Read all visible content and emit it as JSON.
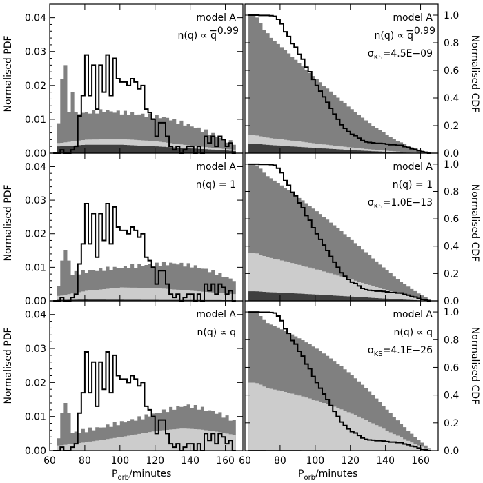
{
  "colors": {
    "dark": "#3f3f3f",
    "mid": "#808080",
    "light": "#cccccc",
    "obs_line": "#000000",
    "background": "#ffffff"
  },
  "chart_data": {
    "type": "area",
    "description_axes": {
      "x_label_main": "P",
      "x_label_sub": "orb",
      "x_label_rest": "/minutes",
      "left_ylabel": "Normalised PDF",
      "right_ylabel": "Normalised CDF",
      "xlim": [
        60,
        170
      ],
      "pdf_ylim": [
        0,
        0.044
      ],
      "cdf_ylim": [
        0,
        1.08
      ],
      "left_xticks": [
        "60",
        "80",
        "100",
        "120",
        "140",
        "160"
      ],
      "right_xticks": [
        "60",
        "80",
        "100",
        "120",
        "140",
        "160"
      ],
      "pdf_yticks": [
        "0.00",
        "0.01",
        "0.02",
        "0.03",
        "0.04"
      ],
      "cdf_yticks": [
        "0.0",
        "0.2",
        "0.4",
        "0.6",
        "0.8",
        "1.0"
      ]
    },
    "rows": [
      {
        "model": "model A",
        "nq_label": "n(q) ∝ q",
        "nq_exponent": "−0.99",
        "sigma_label": "σ",
        "sigma_sub": "KS",
        "sigma_value": "=4.5E−09",
        "pdf_total_shape": [
          [
            65,
            0.009
          ],
          [
            70,
            0.0115
          ],
          [
            90,
            0.0125
          ],
          [
            110,
            0.0115
          ],
          [
            125,
            0.0105
          ],
          [
            140,
            0.008
          ],
          [
            150,
            0.006
          ],
          [
            160,
            0.0035
          ],
          [
            165,
            0.003
          ]
        ],
        "pdf_light_shape": [
          [
            65,
            0.003
          ],
          [
            80,
            0.004
          ],
          [
            100,
            0.0042
          ],
          [
            120,
            0.0035
          ],
          [
            140,
            0.0022
          ],
          [
            160,
            0.0012
          ],
          [
            165,
            0.001
          ]
        ],
        "pdf_dark_shape": [
          [
            65,
            0.002
          ],
          [
            80,
            0.0025
          ],
          [
            100,
            0.0025
          ],
          [
            120,
            0.002
          ],
          [
            140,
            0.0014
          ],
          [
            160,
            0.0008
          ],
          [
            165,
            0.0006
          ]
        ],
        "cdf_dark_start": 0.07,
        "cdf_light_start": 0.13
      },
      {
        "model": "model A",
        "nq_label": "n(q) = 1",
        "nq_exponent": "",
        "sigma_label": "σ",
        "sigma_sub": "KS",
        "sigma_value": "=1.0E−13",
        "pdf_total_shape": [
          [
            65,
            0.004
          ],
          [
            70,
            0.008
          ],
          [
            90,
            0.0095
          ],
          [
            110,
            0.0105
          ],
          [
            130,
            0.0112
          ],
          [
            140,
            0.0105
          ],
          [
            150,
            0.009
          ],
          [
            160,
            0.007
          ],
          [
            165,
            0.006
          ]
        ],
        "pdf_light_shape": [
          [
            65,
            0.0015
          ],
          [
            80,
            0.003
          ],
          [
            100,
            0.004
          ],
          [
            120,
            0.0038
          ],
          [
            140,
            0.003
          ],
          [
            160,
            0.0022
          ],
          [
            165,
            0.002
          ]
        ],
        "pdf_dark_shape": [
          [
            65,
            0.0003
          ],
          [
            80,
            0.0004
          ],
          [
            120,
            0.0003
          ],
          [
            165,
            0.0002
          ]
        ],
        "cdf_dark_start": 0.07,
        "cdf_light_start": 0.35
      },
      {
        "model": "model A",
        "nq_label": "n(q) ∝ q",
        "nq_exponent": "",
        "sigma_label": "σ",
        "sigma_sub": "KS",
        "sigma_value": "=4.1E−26",
        "pdf_total_shape": [
          [
            65,
            0.003
          ],
          [
            70,
            0.005
          ],
          [
            90,
            0.007
          ],
          [
            110,
            0.0095
          ],
          [
            130,
            0.0125
          ],
          [
            137,
            0.0133
          ],
          [
            145,
            0.0125
          ],
          [
            155,
            0.011
          ],
          [
            165,
            0.0085
          ]
        ],
        "pdf_light_shape": [
          [
            65,
            0.0015
          ],
          [
            80,
            0.0025
          ],
          [
            100,
            0.004
          ],
          [
            120,
            0.0058
          ],
          [
            135,
            0.0065
          ],
          [
            145,
            0.0062
          ],
          [
            155,
            0.0055
          ],
          [
            165,
            0.0045
          ]
        ],
        "pdf_dark_shape": [
          [
            65,
            0.0001
          ],
          [
            165,
            0.0001
          ]
        ],
        "cdf_dark_start": 0.005,
        "cdf_light_start": 0.49
      }
    ],
    "observed_pdf_bins": [
      [
        62,
        0.0
      ],
      [
        64,
        0.0
      ],
      [
        66,
        0.001
      ],
      [
        68,
        0.0
      ],
      [
        70,
        0.0
      ],
      [
        72,
        0.001
      ],
      [
        74,
        0.002
      ],
      [
        76,
        0.011
      ],
      [
        78,
        0.017
      ],
      [
        80,
        0.029
      ],
      [
        82,
        0.017
      ],
      [
        84,
        0.026
      ],
      [
        86,
        0.013
      ],
      [
        88,
        0.026
      ],
      [
        90,
        0.018
      ],
      [
        92,
        0.029
      ],
      [
        94,
        0.017
      ],
      [
        96,
        0.028
      ],
      [
        98,
        0.022
      ],
      [
        100,
        0.021
      ],
      [
        102,
        0.021
      ],
      [
        104,
        0.02
      ],
      [
        106,
        0.022
      ],
      [
        108,
        0.021
      ],
      [
        110,
        0.019
      ],
      [
        112,
        0.02
      ],
      [
        114,
        0.013
      ],
      [
        116,
        0.012
      ],
      [
        118,
        0.01
      ],
      [
        120,
        0.005
      ],
      [
        122,
        0.009
      ],
      [
        124,
        0.009
      ],
      [
        126,
        0.005
      ],
      [
        128,
        0.002
      ],
      [
        130,
        0.001
      ],
      [
        132,
        0.002
      ],
      [
        134,
        0.0
      ],
      [
        136,
        0.001
      ],
      [
        138,
        0.002
      ],
      [
        140,
        0.002
      ],
      [
        142,
        0.0
      ],
      [
        144,
        0.002
      ],
      [
        146,
        0.0
      ],
      [
        148,
        0.005
      ],
      [
        150,
        0.003
      ],
      [
        152,
        0.005
      ],
      [
        154,
        0.002
      ],
      [
        156,
        0.005
      ],
      [
        158,
        0.004
      ],
      [
        160,
        0.002
      ],
      [
        162,
        0.003
      ],
      [
        164,
        0.0
      ]
    ]
  }
}
